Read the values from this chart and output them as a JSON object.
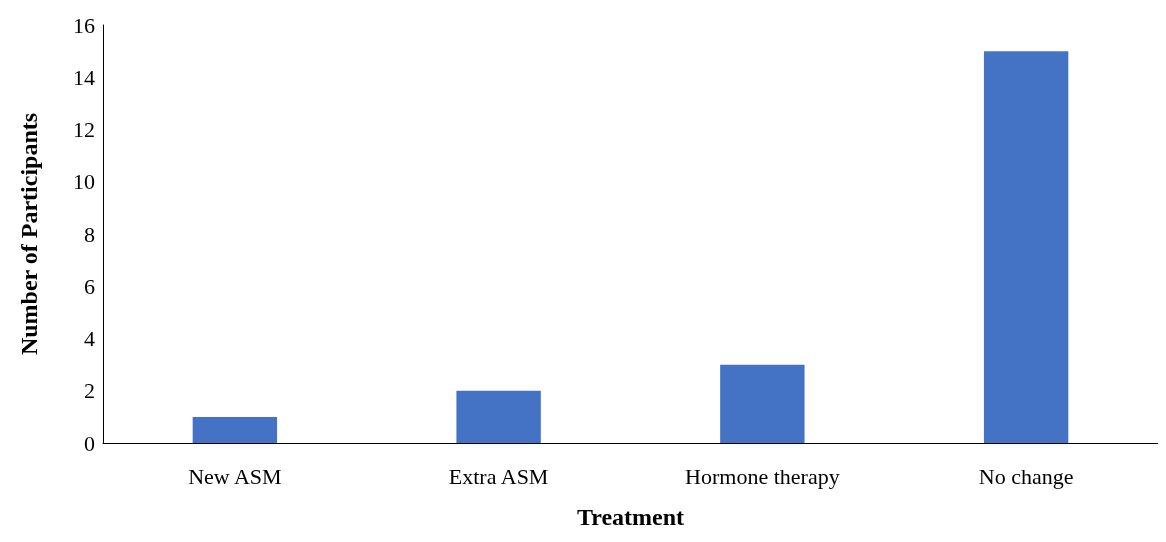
{
  "chart_data": {
    "type": "bar",
    "xlabel": "Treatment",
    "ylabel": "Number of Participants",
    "categories": [
      "New ASM",
      "Extra ASM",
      "Hormone therapy",
      "No change"
    ],
    "values": [
      1,
      2,
      3,
      15
    ],
    "color": "#4472c4",
    "ylim": [
      0,
      16
    ],
    "yticks": [
      0,
      2,
      4,
      6,
      8,
      10,
      12,
      14,
      16
    ],
    "grid": false
  }
}
